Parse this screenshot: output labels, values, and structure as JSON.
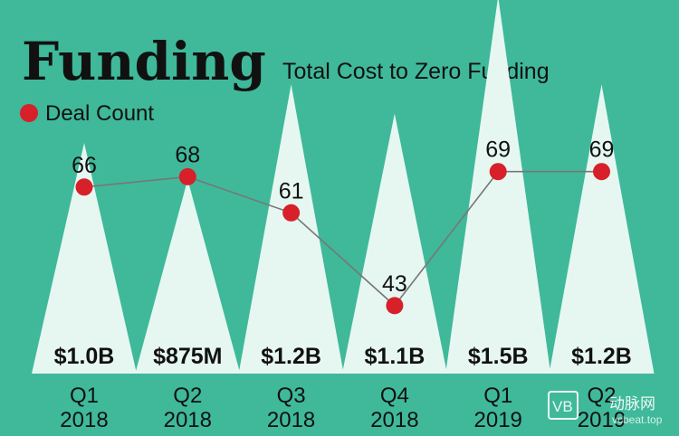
{
  "header": {
    "title": "Funding",
    "subtitle": "Total Cost to Zero Funding"
  },
  "legend": {
    "label": "Deal Count",
    "position": "top-left"
  },
  "colors": {
    "background": "#3fb99a",
    "triangle": "#e6f7f1",
    "marker": "#d7202a",
    "line": "#777777",
    "text": "#111111"
  },
  "watermark": {
    "badge": "VB",
    "text": "动脉网",
    "url": "vcbeat.top"
  },
  "chart_data": {
    "type": "area",
    "categories": [
      "Q1 2018",
      "Q2 2018",
      "Q3 2018",
      "Q4 2018",
      "Q1 2019",
      "Q2 2019"
    ],
    "tick_labels": [
      {
        "quarter": "Q1",
        "year": "2018"
      },
      {
        "quarter": "Q2",
        "year": "2018"
      },
      {
        "quarter": "Q3",
        "year": "2018"
      },
      {
        "quarter": "Q4",
        "year": "2018"
      },
      {
        "quarter": "Q1",
        "year": "2019"
      },
      {
        "quarter": "Q2",
        "year": "2019"
      }
    ],
    "series": [
      {
        "name": "",
        "unit": "USD billions",
        "values": [
          1.0,
          0.875,
          1.2,
          1.1,
          1.5,
          1.2
        ],
        "data_labels": [
          "$1.0B",
          "$875M",
          "$1.2B",
          "$1.1B",
          "$1.5B",
          "$1.2B"
        ]
      },
      {
        "name": "Deal Count",
        "values": [
          66,
          68,
          61,
          43,
          69,
          69
        ],
        "data_labels": [
          "66",
          "68",
          "61",
          "43",
          "69",
          "69"
        ]
      }
    ]
  }
}
